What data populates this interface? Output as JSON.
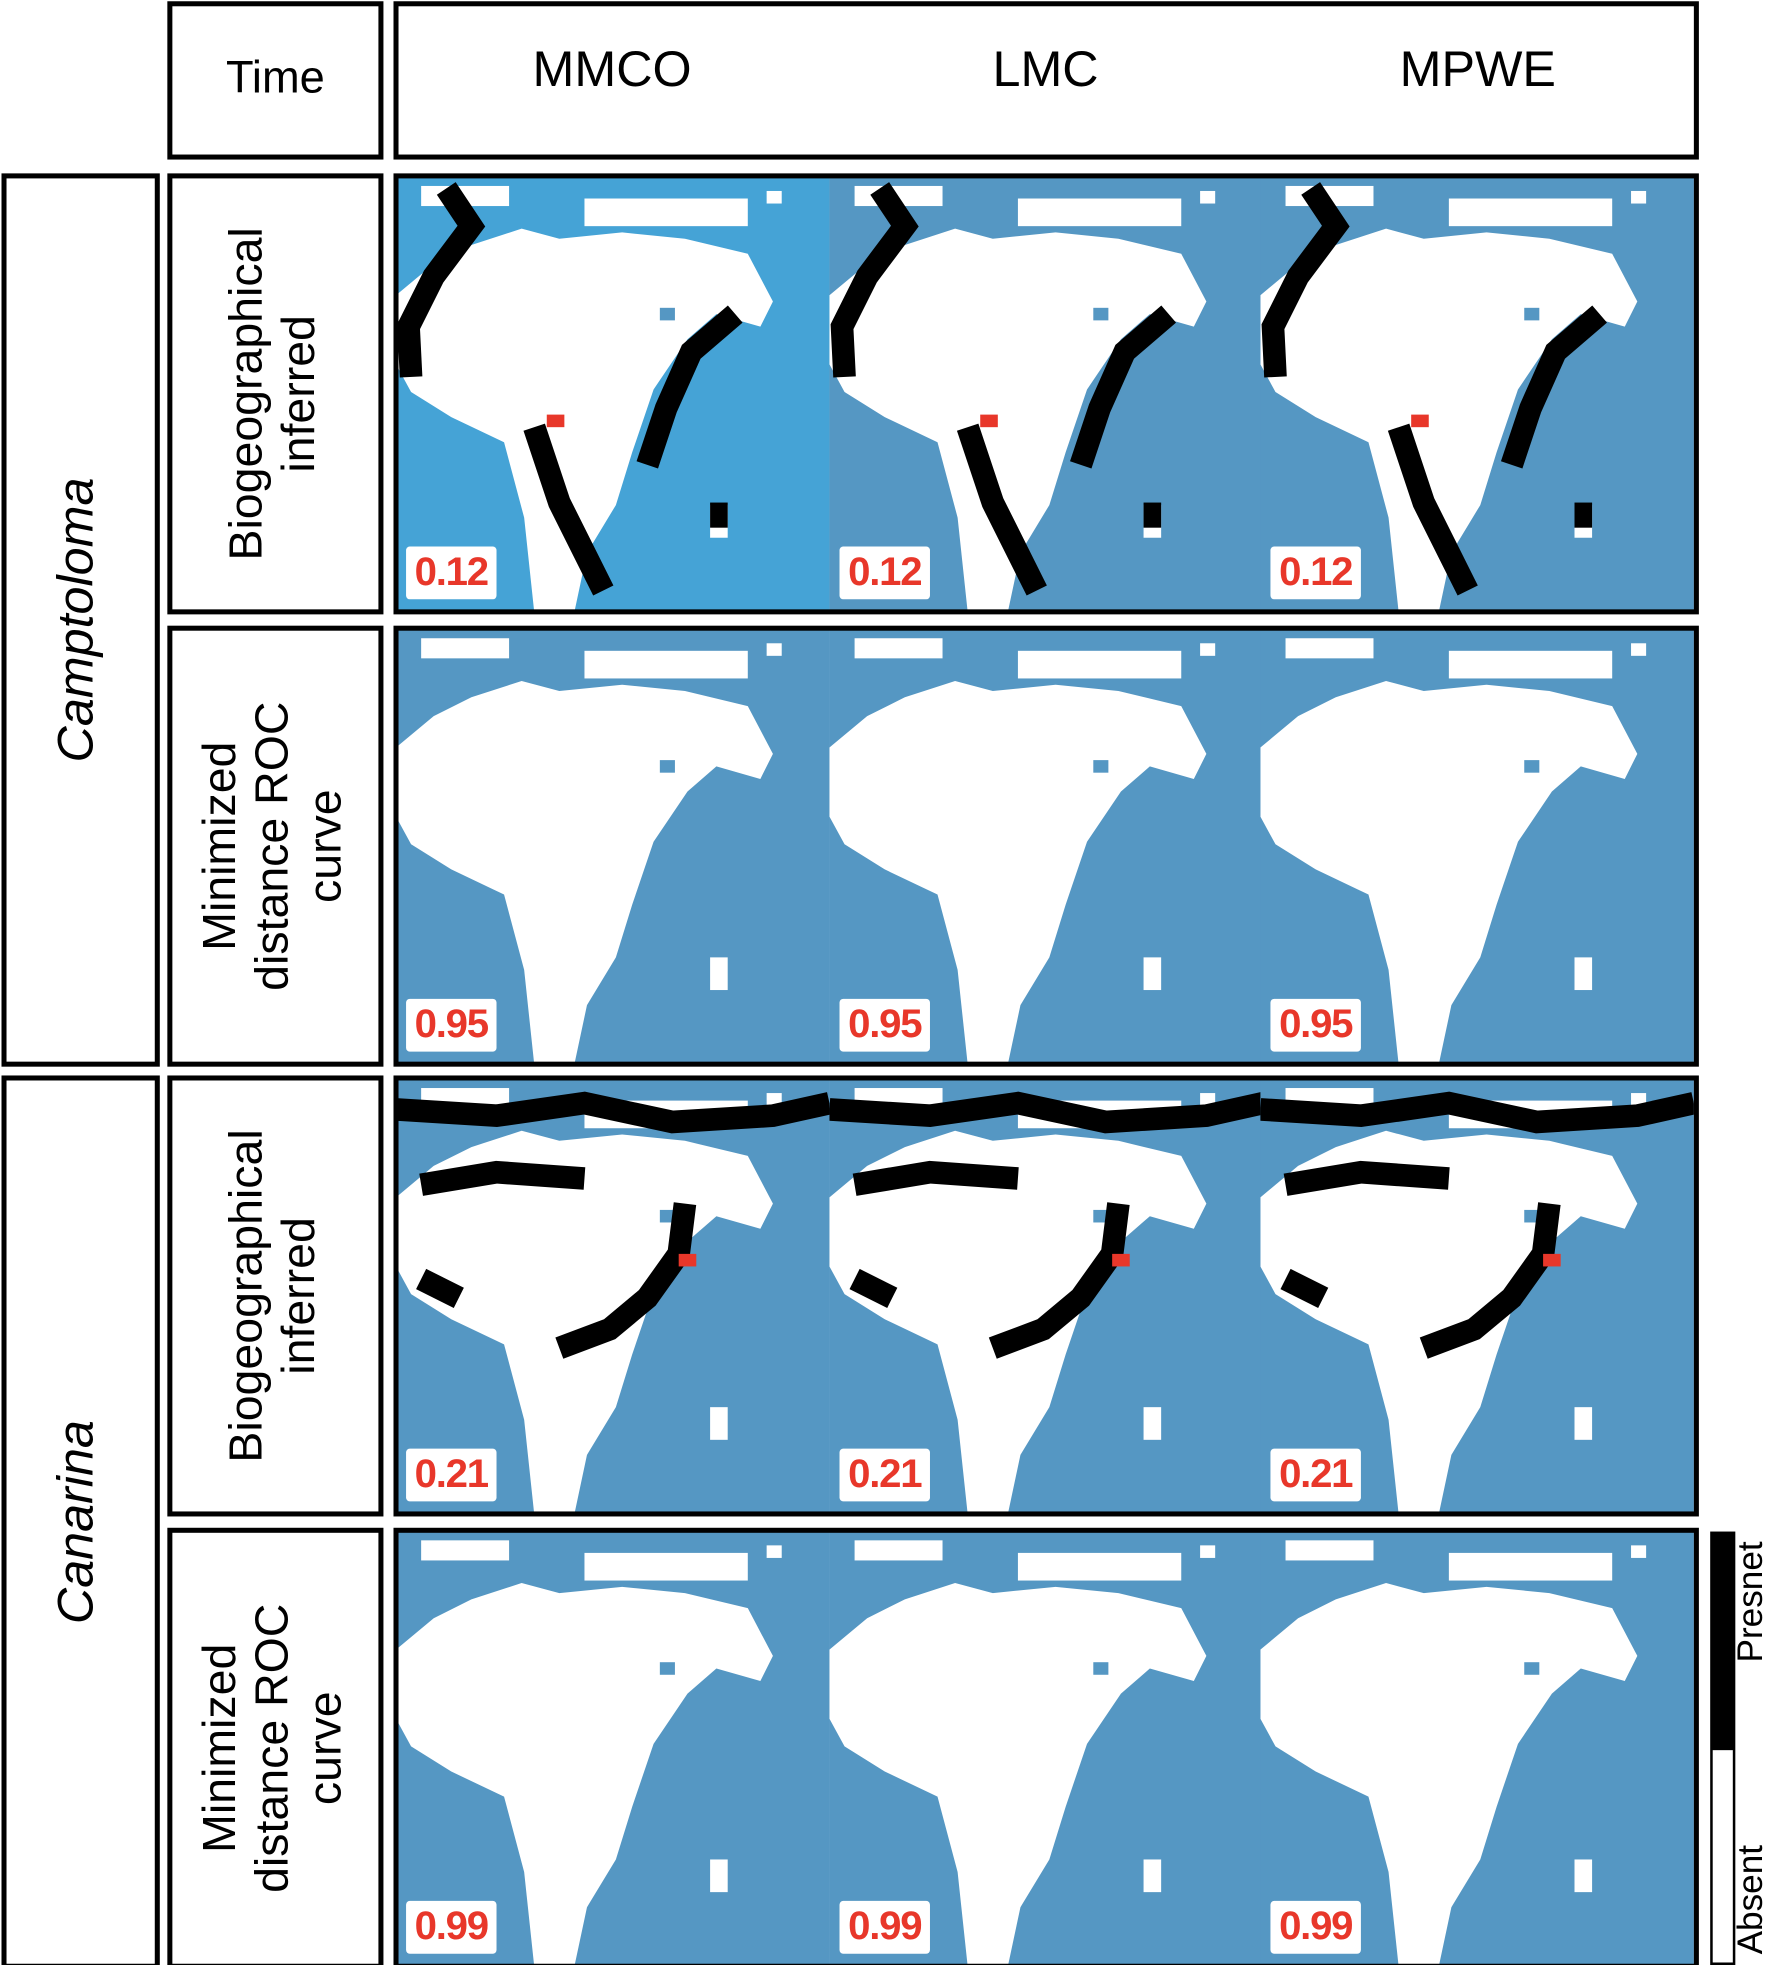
{
  "header": {
    "label": "Time",
    "columns": [
      "MMCO",
      "LMC",
      "MPWE"
    ]
  },
  "groups": [
    {
      "genus": "Camptoloma",
      "rows": [
        {
          "label_lines": [
            "Biogeographical",
            "inferred"
          ],
          "values": [
            0.12,
            0.12,
            0.12
          ]
        },
        {
          "label_lines": [
            "Minimized",
            "distance ROC",
            "curve"
          ],
          "values": [
            0.95,
            0.95,
            0.95
          ]
        }
      ]
    },
    {
      "genus": "Canarina",
      "rows": [
        {
          "label_lines": [
            "Biogeographical",
            "inferred"
          ],
          "values": [
            0.21,
            0.21,
            0.21
          ]
        },
        {
          "label_lines": [
            "Minimized",
            "distance ROC",
            "curve"
          ],
          "values": [
            0.99,
            0.99,
            0.99
          ]
        }
      ]
    }
  ],
  "legend": {
    "present": "Presnet",
    "absent": "Absent"
  }
}
